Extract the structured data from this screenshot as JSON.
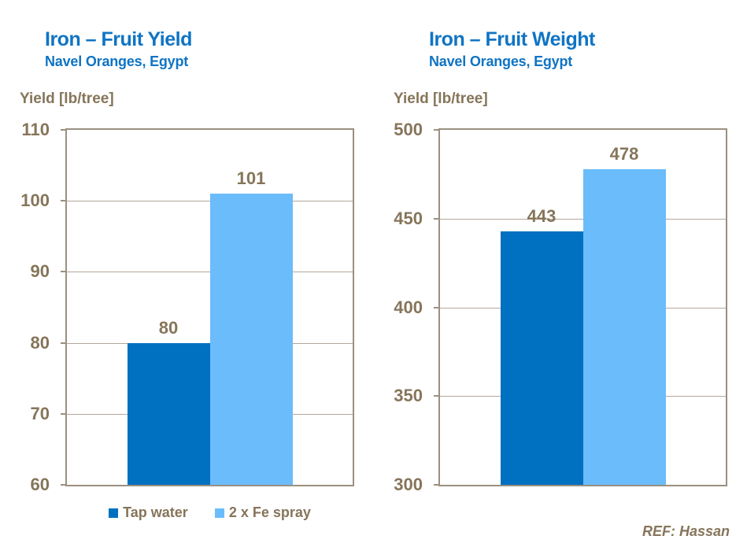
{
  "colors": {
    "title_blue": "#0F74C4",
    "bar_dark_blue": "#0070C0",
    "bar_light_blue": "#6BBCFA",
    "text_brown": "#86755A",
    "gridline": "#B3A89A",
    "axis_border": "#9A9080"
  },
  "chart_data": [
    {
      "type": "bar",
      "title": "Iron – Fruit Yield",
      "subtitle": "Navel Oranges, Egypt",
      "ylabel": "Yield [lb/tree]",
      "ylim": [
        60,
        110
      ],
      "yticks": [
        110,
        100,
        90,
        80,
        70,
        60
      ],
      "grid": true,
      "legend_position": "bottom",
      "categories": [
        "Tap water",
        "2 x Fe spray"
      ],
      "series": [
        {
          "name": "Tap water",
          "value": 80,
          "color": "#0070C0"
        },
        {
          "name": "2 x Fe spray",
          "value": 101,
          "color": "#6BBCFA"
        }
      ]
    },
    {
      "type": "bar",
      "title": "Iron – Fruit Weight",
      "subtitle": "Navel Oranges, Egypt",
      "ylabel": "Yield [lb/tree]",
      "ylim": [
        300,
        500
      ],
      "yticks": [
        500,
        450,
        400,
        350,
        300
      ],
      "grid": true,
      "legend_position": "none",
      "categories": [
        "Tap water",
        "2 x Fe spray"
      ],
      "series": [
        {
          "name": "Tap water",
          "value": 443,
          "color": "#0070C0"
        },
        {
          "name": "2 x Fe spray",
          "value": 478,
          "color": "#6BBCFA"
        }
      ]
    }
  ],
  "legend": {
    "items": [
      {
        "label": "Tap water",
        "color": "#0070C0"
      },
      {
        "label": "2 x Fe spray",
        "color": "#6BBCFA"
      }
    ]
  },
  "footer": {
    "ref": "REF: Hassan"
  }
}
